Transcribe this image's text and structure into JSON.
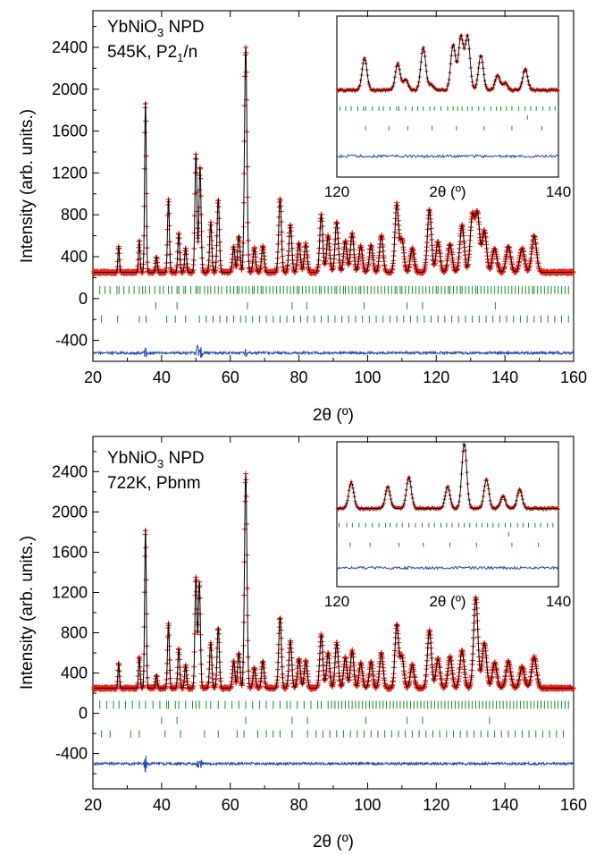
{
  "chart_data": [
    {
      "type": "line",
      "panel": "top",
      "annotation": {
        "line1": "YbNiO",
        "line1_sub": "3",
        "line1_rest": " NPD",
        "line2": "545K, P2",
        "line2_sub": "1",
        "line2_rest": "/n"
      },
      "xlabel": "2θ (º)",
      "ylabel": "Intensity (arb. units.)",
      "xlim": [
        20,
        160
      ],
      "ylim": [
        -600,
        2750
      ],
      "xticks": [
        20,
        40,
        60,
        80,
        100,
        120,
        140,
        160
      ],
      "yticks": [
        -400,
        0,
        400,
        800,
        1200,
        1600,
        2000,
        2400
      ],
      "background": 250,
      "peaks": [
        {
          "x": 27.5,
          "y": 500
        },
        {
          "x": 33.5,
          "y": 550
        },
        {
          "x": 35.3,
          "y": 1880
        },
        {
          "x": 38.5,
          "y": 400
        },
        {
          "x": 42.0,
          "y": 950
        },
        {
          "x": 45.0,
          "y": 620
        },
        {
          "x": 47.0,
          "y": 480
        },
        {
          "x": 50.0,
          "y": 1380
        },
        {
          "x": 51.2,
          "y": 1250
        },
        {
          "x": 54.3,
          "y": 720
        },
        {
          "x": 56.5,
          "y": 950
        },
        {
          "x": 61.0,
          "y": 500
        },
        {
          "x": 62.5,
          "y": 600
        },
        {
          "x": 64.5,
          "y": 2400
        },
        {
          "x": 67.0,
          "y": 480
        },
        {
          "x": 69.5,
          "y": 500
        },
        {
          "x": 74.5,
          "y": 950
        },
        {
          "x": 77.5,
          "y": 700
        },
        {
          "x": 80.0,
          "y": 530
        },
        {
          "x": 82.0,
          "y": 520
        },
        {
          "x": 86.5,
          "y": 800
        },
        {
          "x": 88.5,
          "y": 600
        },
        {
          "x": 91.0,
          "y": 730
        },
        {
          "x": 93.5,
          "y": 550
        },
        {
          "x": 95.5,
          "y": 620
        },
        {
          "x": 98.0,
          "y": 500
        },
        {
          "x": 101.0,
          "y": 510
        },
        {
          "x": 104.0,
          "y": 600
        },
        {
          "x": 108.5,
          "y": 900
        },
        {
          "x": 110.0,
          "y": 560
        },
        {
          "x": 113.0,
          "y": 480
        },
        {
          "x": 118.0,
          "y": 850
        },
        {
          "x": 120.5,
          "y": 540
        },
        {
          "x": 124.0,
          "y": 520
        },
        {
          "x": 127.5,
          "y": 700
        },
        {
          "x": 130.5,
          "y": 780
        },
        {
          "x": 132.0,
          "y": 800
        },
        {
          "x": 134.0,
          "y": 650
        },
        {
          "x": 137.0,
          "y": 480
        },
        {
          "x": 141.0,
          "y": 500
        },
        {
          "x": 145.0,
          "y": 480
        },
        {
          "x": 148.5,
          "y": 600
        }
      ],
      "phase1_ticks": [
        22,
        23.5,
        25,
        27,
        27.6,
        29,
        30.5,
        32,
        33.5,
        34.5,
        35.3,
        36.5,
        38,
        39.5,
        40.5,
        42,
        43,
        44.5,
        45,
        46.5,
        47,
        48.5,
        50,
        50.5,
        51.2,
        52.5,
        53.5,
        54.3,
        55.5,
        56.5,
        57.5,
        59,
        60,
        61,
        62,
        62.5,
        63.5,
        64.5,
        65.5,
        66.5,
        67,
        68,
        69,
        69.5,
        70.5,
        71.5,
        72.5,
        73.5,
        74.5,
        75.5,
        76.5,
        77.5,
        78.5,
        79.5,
        80,
        81,
        82,
        83,
        84,
        85,
        86,
        86.5,
        87.5,
        88.5,
        89.5,
        90.5,
        91,
        92,
        93,
        93.5,
        94.5,
        95.5,
        96.5,
        97.5,
        98,
        99,
        100,
        101,
        102,
        103,
        104,
        105,
        106,
        107,
        108,
        108.5,
        109.5,
        110,
        111,
        112,
        113,
        114,
        115,
        116,
        117,
        118,
        119,
        120,
        120.5,
        121.5,
        122.5,
        123.5,
        124,
        125,
        126,
        127,
        127.5,
        128.5,
        129.5,
        130.5,
        131.5,
        132,
        133,
        134,
        135,
        136,
        137,
        138,
        139,
        140,
        141,
        142,
        143,
        144,
        145,
        146,
        147,
        148,
        148.5,
        149.5,
        150.5,
        151.5,
        152.5,
        153.5,
        154.5,
        155.5,
        156.5,
        157.5,
        158.5
      ],
      "phase2_ticks": [
        38.3,
        44.5,
        65.0,
        78.0,
        82.3,
        99.0,
        111.5,
        116.0,
        137.2
      ],
      "phase3_ticks": [
        22.5,
        27.2,
        33.5,
        35.5,
        41.5,
        44.0,
        47.0,
        51.0,
        53.0,
        55.0,
        57.0,
        59.0,
        61.0,
        63.0,
        64.5,
        66.5,
        68.5,
        70.5,
        72.5,
        74.5,
        76.5,
        78.5,
        80.5,
        82.5,
        84.5,
        86.5,
        88.5,
        90.5,
        92.5,
        94.5,
        96.5,
        98.5,
        100.5,
        102.5,
        104.5,
        106.5,
        108.5,
        110.5,
        112.5,
        114.5,
        116.5,
        118.5,
        120.5,
        122.5,
        124.5,
        126.5,
        128.5,
        130.5,
        132.5,
        134.5,
        136.5,
        138.5,
        140.5,
        142.5,
        144.5,
        146.5,
        148.5,
        150.5,
        152.5,
        154.5,
        156.5,
        158.5
      ],
      "diff_baseline": -520,
      "diff_spikes": [
        {
          "x": 35.3,
          "amp": 45
        },
        {
          "x": 50.5,
          "amp": 70
        },
        {
          "x": 51.5,
          "amp": 50
        },
        {
          "x": 64.5,
          "amp": 30
        }
      ],
      "inset": {
        "xlim": [
          120,
          140
        ],
        "xticks": [
          120,
          140
        ],
        "xlabel": "2θ (º)",
        "background": 0.35,
        "peaks": [
          {
            "x": 122.5,
            "y": 0.95
          },
          {
            "x": 125.5,
            "y": 0.85
          },
          {
            "x": 126.2,
            "y": 0.55
          },
          {
            "x": 127.8,
            "y": 1.15
          },
          {
            "x": 130.5,
            "y": 1.2
          },
          {
            "x": 131.2,
            "y": 1.35
          },
          {
            "x": 131.8,
            "y": 1.35
          },
          {
            "x": 133.0,
            "y": 1.0
          },
          {
            "x": 134.5,
            "y": 0.62
          },
          {
            "x": 135.2,
            "y": 0.48
          },
          {
            "x": 137.0,
            "y": 0.75
          },
          {
            "x": 128.5,
            "y": 0.45
          }
        ],
        "phase1_ticks": [
          120.3,
          120.8,
          121.3,
          121.9,
          122.4,
          122.6,
          123.2,
          123.8,
          124.2,
          124.8,
          125.4,
          125.6,
          126.2,
          126.8,
          127.3,
          127.8,
          128.4,
          128.8,
          129.4,
          130.0,
          130.5,
          130.9,
          131.3,
          131.8,
          132.2,
          132.8,
          133.3,
          133.9,
          134.4,
          134.8,
          135.3,
          135.8,
          136.4,
          137.0,
          137.5,
          138.0,
          138.6,
          139.2,
          139.7
        ],
        "phase2_ticks": [
          137.2
        ],
        "phase3_ticks": [
          122.6,
          124.7,
          126.4,
          128.6,
          130.8,
          133.3,
          135.8,
          138.5
        ]
      }
    },
    {
      "type": "line",
      "panel": "bottom",
      "annotation": {
        "line1": "YbNiO",
        "line1_sub": "3",
        "line1_rest": " NPD",
        "line2": "722K, Pbnm",
        "line2_sub": "",
        "line2_rest": ""
      },
      "xlabel": "2θ (º)",
      "ylabel": "Intensity (arb. units.)",
      "xlim": [
        20,
        160
      ],
      "ylim": [
        -750,
        2750
      ],
      "xticks": [
        20,
        40,
        60,
        80,
        100,
        120,
        140,
        160
      ],
      "yticks": [
        -400,
        0,
        400,
        800,
        1200,
        1600,
        2000,
        2400
      ],
      "background": 250,
      "peaks": [
        {
          "x": 27.5,
          "y": 500
        },
        {
          "x": 33.5,
          "y": 560
        },
        {
          "x": 35.3,
          "y": 1830
        },
        {
          "x": 38.5,
          "y": 380
        },
        {
          "x": 42.0,
          "y": 900
        },
        {
          "x": 45.0,
          "y": 640
        },
        {
          "x": 47.0,
          "y": 480
        },
        {
          "x": 50.0,
          "y": 1350
        },
        {
          "x": 51.0,
          "y": 1300
        },
        {
          "x": 54.3,
          "y": 700
        },
        {
          "x": 56.5,
          "y": 850
        },
        {
          "x": 61.0,
          "y": 520
        },
        {
          "x": 62.5,
          "y": 600
        },
        {
          "x": 64.5,
          "y": 2380
        },
        {
          "x": 67.0,
          "y": 450
        },
        {
          "x": 69.5,
          "y": 520
        },
        {
          "x": 74.5,
          "y": 950
        },
        {
          "x": 77.5,
          "y": 720
        },
        {
          "x": 80.0,
          "y": 540
        },
        {
          "x": 82.0,
          "y": 520
        },
        {
          "x": 86.5,
          "y": 780
        },
        {
          "x": 88.5,
          "y": 600
        },
        {
          "x": 91.0,
          "y": 700
        },
        {
          "x": 93.5,
          "y": 550
        },
        {
          "x": 95.5,
          "y": 620
        },
        {
          "x": 98.0,
          "y": 500
        },
        {
          "x": 101.0,
          "y": 510
        },
        {
          "x": 104.0,
          "y": 600
        },
        {
          "x": 108.5,
          "y": 880
        },
        {
          "x": 110.0,
          "y": 560
        },
        {
          "x": 113.0,
          "y": 480
        },
        {
          "x": 118.0,
          "y": 820
        },
        {
          "x": 120.5,
          "y": 540
        },
        {
          "x": 124.0,
          "y": 560
        },
        {
          "x": 127.5,
          "y": 620
        },
        {
          "x": 131.5,
          "y": 1150
        },
        {
          "x": 134.0,
          "y": 700
        },
        {
          "x": 137.0,
          "y": 500
        },
        {
          "x": 141.0,
          "y": 520
        },
        {
          "x": 145.0,
          "y": 460
        },
        {
          "x": 148.5,
          "y": 560
        }
      ],
      "phase1_ticks": [
        22,
        24,
        26,
        27.6,
        29.5,
        31.5,
        33.5,
        35.3,
        37.5,
        39.5,
        41.5,
        42,
        44,
        45,
        47,
        49,
        50,
        51,
        53,
        54.3,
        56.5,
        58.5,
        60.5,
        62.5,
        64.5,
        66.5,
        68.5,
        70.5,
        72.5,
        74.5,
        76.5,
        77.5,
        79.5,
        81.5,
        83.5,
        85.5,
        86.5,
        88.5,
        89.5,
        90.5,
        91.5,
        92.5,
        93.5,
        94.5,
        95.5,
        96.5,
        97.5,
        98.5,
        99.5,
        100.5,
        101.5,
        102.5,
        103.5,
        104.5,
        105.5,
        106.5,
        107.5,
        108.5,
        109.5,
        110.5,
        111.5,
        112.5,
        113.5,
        114.5,
        115.5,
        116.5,
        117.5,
        118.5,
        119.5,
        120.5,
        121.5,
        122.5,
        123.5,
        124.5,
        125.5,
        126.5,
        127.5,
        128.5,
        129.5,
        130.5,
        131.5,
        132.5,
        133.5,
        134.5,
        135.5,
        136.5,
        137.5,
        138.5,
        139.5,
        140.5,
        141.5,
        142.5,
        143.5,
        144.5,
        145.5,
        146.5,
        147.5,
        148.5,
        149.5,
        150.5,
        151.5,
        152.5,
        153.5,
        154.5,
        155.5,
        156.5,
        157.5,
        158.5
      ],
      "phase2_ticks": [
        40.0,
        44.5,
        64.5,
        78.0,
        82.5,
        99.5,
        111.5,
        116.0,
        135.5
      ],
      "phase3_ticks": [
        22.5,
        25.0,
        31.0,
        33.5,
        41.0,
        45.5,
        52.5,
        56.5,
        62.0,
        64.0,
        68.0,
        70.5,
        72.5,
        74.5,
        78.0,
        82.5,
        85.0,
        87.0,
        89.0,
        91.0,
        93.0,
        95.0,
        97.0,
        99.0,
        101.0,
        103.0,
        105.0,
        107.0,
        109.0,
        111.0,
        113.0,
        115.0,
        117.0,
        119.0,
        121.0,
        123.0,
        125.0,
        127.0,
        129.0,
        131.0,
        133.0,
        135.0,
        137.0,
        139.0,
        141.0,
        143.0,
        145.0,
        147.0,
        149.0,
        151.0,
        153.0,
        155.0,
        157.0
      ],
      "diff_baseline": -500,
      "diff_spikes": [
        {
          "x": 35.3,
          "amp": 80
        },
        {
          "x": 50.5,
          "amp": 40
        },
        {
          "x": 51.5,
          "amp": 35
        }
      ],
      "inset": {
        "xlim": [
          120,
          140
        ],
        "xticks": [
          120,
          140
        ],
        "xlabel": "2θ (º)",
        "background": 0.3,
        "peaks": [
          {
            "x": 121.3,
            "y": 0.85
          },
          {
            "x": 124.6,
            "y": 0.75
          },
          {
            "x": 126.5,
            "y": 0.95
          },
          {
            "x": 130.0,
            "y": 0.75
          },
          {
            "x": 131.5,
            "y": 1.65
          },
          {
            "x": 133.5,
            "y": 0.9
          },
          {
            "x": 135.0,
            "y": 0.55
          },
          {
            "x": 136.5,
            "y": 0.7
          },
          {
            "x": 129.5,
            "y": 0.3
          }
        ],
        "phase1_ticks": [
          120.2,
          120.9,
          121.4,
          122.0,
          122.6,
          123.2,
          123.8,
          124.4,
          124.8,
          125.4,
          125.9,
          126.5,
          127.1,
          127.7,
          128.3,
          128.8,
          129.4,
          129.9,
          130.4,
          131.0,
          131.5,
          132.0,
          132.6,
          133.1,
          133.6,
          134.1,
          134.6,
          135.2,
          135.7,
          136.3,
          136.8,
          137.3,
          137.9,
          138.4,
          139.0,
          139.5
        ],
        "phase2_ticks": [
          135.5
        ],
        "phase3_ticks": [
          121.2,
          123.0,
          125.6,
          127.8,
          130.2,
          132.6,
          135.8,
          138.2
        ]
      }
    }
  ]
}
